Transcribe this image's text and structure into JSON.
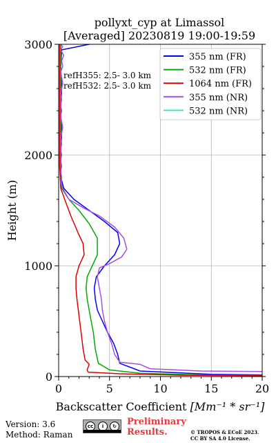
{
  "chart_data": {
    "type": "line",
    "title_line1": "pollyxt_cyp at Limassol",
    "title_line2": "[Averaged] 20230819 19:00-19:59",
    "xlabel": "Backscatter Coefficient",
    "xlabel_unit": "[Mm⁻¹ * sr⁻¹]",
    "ylabel": "Height (m)",
    "xlim": [
      0,
      20
    ],
    "ylim": [
      0,
      3000
    ],
    "x_ticks": [
      0,
      5,
      10,
      15,
      20
    ],
    "y_ticks": [
      0,
      1000,
      2000,
      3000
    ],
    "grid": true,
    "legend_position": "top-right",
    "annotations": [
      "refH355:  2.5- 3.0 km",
      "refH532:  2.5- 3.0 km"
    ],
    "series": [
      {
        "name": "355 nm (FR)",
        "color": "#0000ff",
        "points": [
          [
            3,
            3000
          ],
          [
            0.3,
            2950
          ],
          [
            0.2,
            2800
          ],
          [
            0.3,
            2600
          ],
          [
            0.2,
            2400
          ],
          [
            0.3,
            2200
          ],
          [
            0.2,
            2000
          ],
          [
            0.2,
            1800
          ],
          [
            0.5,
            1700
          ],
          [
            1.5,
            1600
          ],
          [
            3,
            1500
          ],
          [
            4.5,
            1400
          ],
          [
            5.8,
            1300
          ],
          [
            6,
            1200
          ],
          [
            5.5,
            1100
          ],
          [
            4.5,
            1000
          ],
          [
            3.7,
            900
          ],
          [
            3.5,
            800
          ],
          [
            3.6,
            700
          ],
          [
            3.8,
            600
          ],
          [
            4.3,
            500
          ],
          [
            4.8,
            400
          ],
          [
            5.4,
            300
          ],
          [
            5.8,
            200
          ],
          [
            6,
            120
          ],
          [
            8,
            50
          ],
          [
            15,
            20
          ],
          [
            20,
            15
          ]
        ]
      },
      {
        "name": "532 nm (FR)",
        "color": "#00aa00",
        "points": [
          [
            0.2,
            3000
          ],
          [
            0.2,
            2600
          ],
          [
            0.2,
            2200
          ],
          [
            0.2,
            1900
          ],
          [
            0.3,
            1700
          ],
          [
            1,
            1600
          ],
          [
            2,
            1500
          ],
          [
            3,
            1380
          ],
          [
            3.8,
            1250
          ],
          [
            3.8,
            1100
          ],
          [
            3.3,
            1000
          ],
          [
            2.8,
            900
          ],
          [
            2.7,
            800
          ],
          [
            2.8,
            700
          ],
          [
            3.1,
            550
          ],
          [
            3.4,
            400
          ],
          [
            3.6,
            250
          ],
          [
            3.9,
            120
          ],
          [
            5,
            60
          ],
          [
            8,
            30
          ],
          [
            14,
            15
          ],
          [
            20,
            10
          ]
        ]
      },
      {
        "name": "1064 nm (FR)",
        "color": "#dd0000",
        "points": [
          [
            0.1,
            3000
          ],
          [
            0.1,
            2600
          ],
          [
            0.1,
            2200
          ],
          [
            0.1,
            1900
          ],
          [
            0.2,
            1700
          ],
          [
            0.6,
            1600
          ],
          [
            1.2,
            1450
          ],
          [
            1.9,
            1300
          ],
          [
            2.4,
            1200
          ],
          [
            2.5,
            1100
          ],
          [
            2,
            1000
          ],
          [
            1.7,
            900
          ],
          [
            1.7,
            800
          ],
          [
            1.8,
            700
          ],
          [
            2,
            550
          ],
          [
            2.2,
            400
          ],
          [
            2.4,
            250
          ],
          [
            2.6,
            150
          ],
          [
            3,
            110
          ],
          [
            2.8,
            60
          ],
          [
            2.9,
            40
          ],
          [
            6,
            25
          ],
          [
            12,
            12
          ],
          [
            20,
            8
          ]
        ]
      },
      {
        "name": "355 nm (NR)",
        "color": "#a64ce8",
        "points": [
          [
            0.2,
            3000
          ],
          [
            0.4,
            2980
          ],
          [
            0.2,
            2950
          ],
          [
            0.5,
            2900
          ],
          [
            0.3,
            2850
          ],
          [
            0.4,
            2800
          ],
          [
            0.2,
            2750
          ],
          [
            0.3,
            2700
          ],
          [
            0.4,
            2650
          ],
          [
            0.3,
            2600
          ],
          [
            0.2,
            2550
          ],
          [
            0.3,
            2500
          ],
          [
            0.2,
            2450
          ],
          [
            0.3,
            2400
          ],
          [
            0.2,
            2350
          ],
          [
            0.3,
            2300
          ],
          [
            0.4,
            2250
          ],
          [
            0.3,
            2200
          ],
          [
            0.2,
            2150
          ],
          [
            0.3,
            2100
          ],
          [
            0.2,
            2050
          ],
          [
            0.3,
            2000
          ],
          [
            0.2,
            1950
          ],
          [
            0.3,
            1900
          ],
          [
            0.2,
            1850
          ],
          [
            0.3,
            1800
          ],
          [
            0.2,
            1750
          ],
          [
            0.4,
            1700
          ],
          [
            1,
            1600
          ],
          [
            2.5,
            1520
          ],
          [
            4,
            1450
          ],
          [
            5.5,
            1350
          ],
          [
            6.4,
            1250
          ],
          [
            6.7,
            1150
          ],
          [
            6.2,
            1080
          ],
          [
            5,
            1020
          ],
          [
            4,
            980
          ],
          [
            3.8,
            900
          ],
          [
            4,
            800
          ],
          [
            4.2,
            700
          ],
          [
            4.3,
            600
          ],
          [
            4.5,
            500
          ],
          [
            4.8,
            400
          ],
          [
            5.2,
            300
          ],
          [
            5.5,
            200
          ],
          [
            6,
            130
          ],
          [
            8,
            110
          ],
          [
            9,
            70
          ],
          [
            14,
            50
          ],
          [
            20,
            45
          ]
        ]
      },
      {
        "name": "532 nm (NR)",
        "color": "#40e0c0",
        "points": []
      }
    ]
  },
  "footer": {
    "version": "Version: 3.6",
    "method": "Method: Raman",
    "preliminary_line1": "Preliminary",
    "preliminary_line2": "Results.",
    "copyright_line1": "© TROPOS & ECoE 2023.",
    "copyright_line2": "CC BY SA 4.0 License."
  }
}
